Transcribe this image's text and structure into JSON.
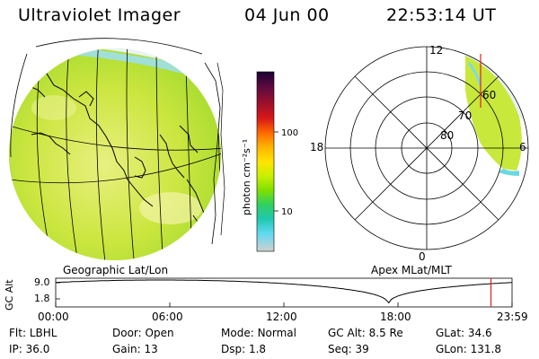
{
  "header": {
    "title": "Ultraviolet Imager",
    "date": "04 Jun 00",
    "time": "22:53:14 UT"
  },
  "left_panel": {
    "caption": "Geographic Lat/Lon"
  },
  "right_panel": {
    "caption": "Apex MLat/MLT",
    "mlt_labels": [
      "12",
      "18",
      "0",
      "6"
    ],
    "mlat_labels": [
      "60",
      "70",
      "80"
    ]
  },
  "colorbar": {
    "unit_label": "photon cm⁻²s⁻¹",
    "ticks": [
      "100",
      "10"
    ],
    "colors": [
      "#1a0033",
      "#5a0a40",
      "#a0102a",
      "#d81818",
      "#ff6a00",
      "#ffb400",
      "#ffe400",
      "#c8f000",
      "#80e000",
      "#30d060",
      "#20c8b0",
      "#60d8f0",
      "#d0d0d0"
    ]
  },
  "timeline": {
    "axis_title": "GC Alt",
    "y_ticks": [
      "9.0",
      "1.8"
    ],
    "x_ticks": [
      "00:00",
      "06:00",
      "12:00",
      "18:00",
      "23:59"
    ],
    "current_marker_hour": 22.89
  },
  "footer": {
    "row1": [
      {
        "label": "Flt:",
        "value": "LBHL"
      },
      {
        "label": "Door:",
        "value": "Open"
      },
      {
        "label": "Mode:",
        "value": "Normal"
      },
      {
        "label": "GC Alt:",
        "value": "8.5 Re"
      },
      {
        "label": "GLat:",
        "value": "34.6"
      }
    ],
    "row2": [
      {
        "label": "IP:",
        "value": "36.0"
      },
      {
        "label": "Gain:",
        "value": "13"
      },
      {
        "label": "Dsp:",
        "value": "1.8"
      },
      {
        "label": "Seq:",
        "value": "39"
      },
      {
        "label": "GLon:",
        "value": "131.8"
      }
    ]
  }
}
